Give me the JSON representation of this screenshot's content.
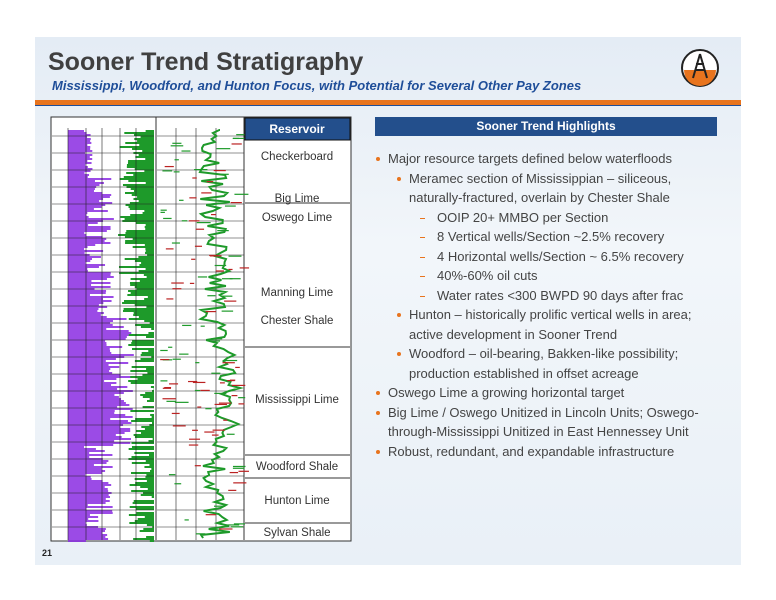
{
  "header": {
    "title": "Sooner Trend Stratigraphy",
    "subtitle": "Mississippi, Woodford, and Hunton Focus, with Potential for Several Other Pay Zones"
  },
  "reservoir": {
    "header": "Reservoir",
    "zones": [
      "Checkerboard",
      "Big Lime",
      "Oswego Lime",
      "Manning Lime",
      "Chester Shale",
      "Mississippi Lime",
      "Woodford Shale",
      "Hunton Lime",
      "Sylvan Shale"
    ]
  },
  "highlights": {
    "header": "Sooner Trend Highlights",
    "items": [
      {
        "text": "Major resource targets defined below waterfloods",
        "children": [
          {
            "text": "Meramec section of Mississippian – siliceous, naturally-fractured, overlain by Chester Shale",
            "children": [
              {
                "text": "OOIP 20+ MMBO per Section"
              },
              {
                "text": "8 Vertical wells/Section ~2.5% recovery"
              },
              {
                "text": "4 Horizontal wells/Section ~ 6.5% recovery"
              },
              {
                "text": "40%-60% oil cuts"
              },
              {
                "text": "Water rates <300 BWPD 90 days after frac"
              }
            ]
          },
          {
            "text": "Hunton – historically prolific vertical wells in area; active development in Sooner Trend"
          },
          {
            "text": "Woodford – oil-bearing, Bakken-like possibility; production established in offset acreage"
          }
        ]
      },
      {
        "text": "Oswego Lime a growing horizontal target"
      },
      {
        "text": "Big Lime / Oswego Unitized in Lincoln Units; Oswego-through-Mississippi Unitized in East Hennessey Unit"
      },
      {
        "text": "Robust, redundant, and expandable infrastructure"
      }
    ]
  },
  "page_number": "21"
}
